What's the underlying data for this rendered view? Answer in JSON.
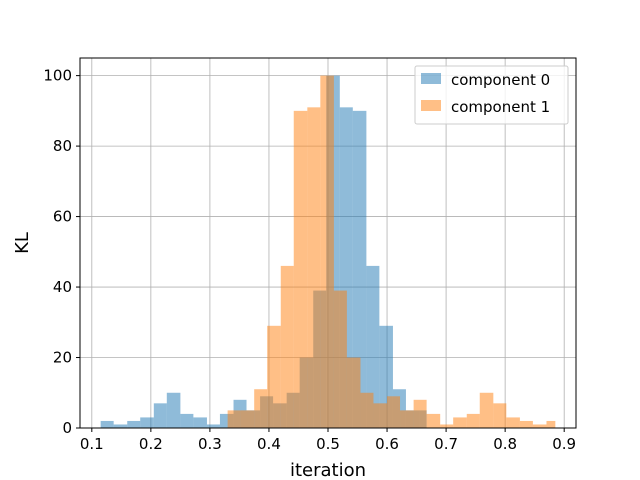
{
  "chart_data": {
    "type": "bar",
    "title": "",
    "xlabel": "iteration",
    "ylabel": "KL",
    "xlim": [
      0.08,
      0.92
    ],
    "ylim": [
      0,
      105
    ],
    "xticks": [
      0.1,
      0.2,
      0.3,
      0.4,
      0.5,
      0.6,
      0.7,
      0.8,
      0.9
    ],
    "yticks": [
      0,
      20,
      40,
      60,
      80,
      100
    ],
    "grid": true,
    "legend_position": "top-right",
    "series": [
      {
        "name": "component 0",
        "color": "#1f77b4",
        "alpha": 0.5,
        "bars": [
          {
            "x0": 0.115,
            "x1": 0.137,
            "value": 2
          },
          {
            "x0": 0.137,
            "x1": 0.16,
            "value": 1
          },
          {
            "x0": 0.16,
            "x1": 0.182,
            "value": 2
          },
          {
            "x0": 0.182,
            "x1": 0.205,
            "value": 3
          },
          {
            "x0": 0.205,
            "x1": 0.227,
            "value": 7
          },
          {
            "x0": 0.227,
            "x1": 0.25,
            "value": 10
          },
          {
            "x0": 0.25,
            "x1": 0.272,
            "value": 4
          },
          {
            "x0": 0.272,
            "x1": 0.295,
            "value": 3
          },
          {
            "x0": 0.295,
            "x1": 0.317,
            "value": 1
          },
          {
            "x0": 0.317,
            "x1": 0.34,
            "value": 4
          },
          {
            "x0": 0.34,
            "x1": 0.362,
            "value": 8
          },
          {
            "x0": 0.362,
            "x1": 0.385,
            "value": 5
          },
          {
            "x0": 0.385,
            "x1": 0.407,
            "value": 9
          },
          {
            "x0": 0.407,
            "x1": 0.43,
            "value": 7
          },
          {
            "x0": 0.43,
            "x1": 0.452,
            "value": 10
          },
          {
            "x0": 0.452,
            "x1": 0.475,
            "value": 20
          },
          {
            "x0": 0.475,
            "x1": 0.497,
            "value": 39
          },
          {
            "x0": 0.497,
            "x1": 0.52,
            "value": 100
          },
          {
            "x0": 0.52,
            "x1": 0.542,
            "value": 91
          },
          {
            "x0": 0.542,
            "x1": 0.565,
            "value": 90
          },
          {
            "x0": 0.565,
            "x1": 0.587,
            "value": 46
          },
          {
            "x0": 0.587,
            "x1": 0.61,
            "value": 29
          },
          {
            "x0": 0.61,
            "x1": 0.632,
            "value": 11
          },
          {
            "x0": 0.632,
            "x1": 0.655,
            "value": 5
          },
          {
            "x0": 0.655,
            "x1": 0.667,
            "value": 5
          }
        ]
      },
      {
        "name": "component 1",
        "color": "#ff7f0e",
        "alpha": 0.5,
        "bars": [
          {
            "x0": 0.33,
            "x1": 0.352,
            "value": 5
          },
          {
            "x0": 0.352,
            "x1": 0.375,
            "value": 5
          },
          {
            "x0": 0.375,
            "x1": 0.397,
            "value": 11
          },
          {
            "x0": 0.397,
            "x1": 0.42,
            "value": 29
          },
          {
            "x0": 0.42,
            "x1": 0.442,
            "value": 46
          },
          {
            "x0": 0.442,
            "x1": 0.465,
            "value": 90
          },
          {
            "x0": 0.465,
            "x1": 0.487,
            "value": 91
          },
          {
            "x0": 0.487,
            "x1": 0.51,
            "value": 100
          },
          {
            "x0": 0.51,
            "x1": 0.532,
            "value": 39
          },
          {
            "x0": 0.532,
            "x1": 0.555,
            "value": 20
          },
          {
            "x0": 0.555,
            "x1": 0.577,
            "value": 10
          },
          {
            "x0": 0.577,
            "x1": 0.6,
            "value": 7
          },
          {
            "x0": 0.6,
            "x1": 0.622,
            "value": 9
          },
          {
            "x0": 0.622,
            "x1": 0.645,
            "value": 5
          },
          {
            "x0": 0.645,
            "x1": 0.667,
            "value": 8
          },
          {
            "x0": 0.667,
            "x1": 0.69,
            "value": 4
          },
          {
            "x0": 0.69,
            "x1": 0.712,
            "value": 1
          },
          {
            "x0": 0.712,
            "x1": 0.735,
            "value": 3
          },
          {
            "x0": 0.735,
            "x1": 0.757,
            "value": 4
          },
          {
            "x0": 0.757,
            "x1": 0.78,
            "value": 10
          },
          {
            "x0": 0.78,
            "x1": 0.802,
            "value": 7
          },
          {
            "x0": 0.802,
            "x1": 0.825,
            "value": 3
          },
          {
            "x0": 0.825,
            "x1": 0.847,
            "value": 2
          },
          {
            "x0": 0.847,
            "x1": 0.87,
            "value": 1
          },
          {
            "x0": 0.87,
            "x1": 0.885,
            "value": 2
          }
        ]
      }
    ]
  }
}
